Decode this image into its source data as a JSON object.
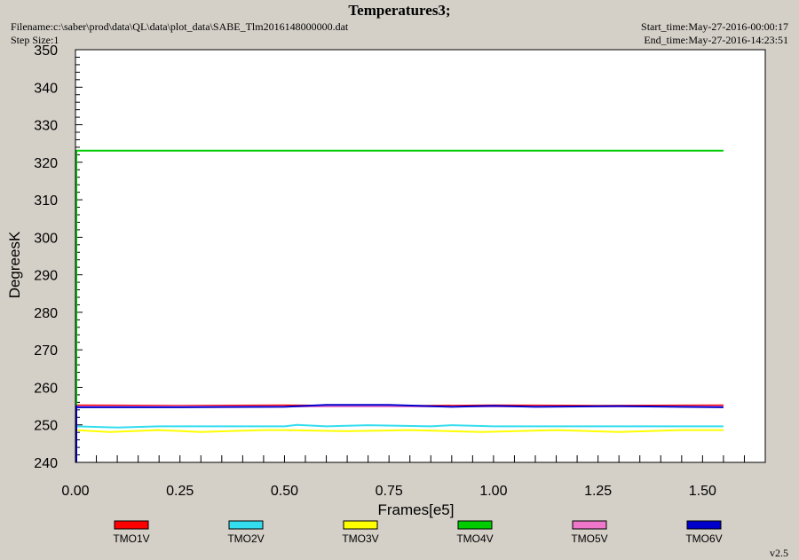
{
  "header": {
    "title": "Temperatures3;",
    "filename": "Filename:c:\\saber\\prod\\data\\QL\\data\\plot_data\\SABE_Tlm2016148000000.dat",
    "step_size": "Step Size:1",
    "start_time": "Start_time:May-27-2016-00:00:17",
    "end_time": "End_time:May-27-2016-14:23:51"
  },
  "version": "v2.5",
  "chart_data": {
    "type": "line",
    "title": "Temperatures3;",
    "xlabel": "Frames[e5]",
    "ylabel": "DegreesK",
    "xlim": [
      0,
      1.65
    ],
    "ylim": [
      240,
      350
    ],
    "xticks": [
      "0.00",
      "0.25",
      "0.50",
      "0.75",
      "1.00",
      "1.25",
      "1.50"
    ],
    "yticks": [
      "240",
      "250",
      "260",
      "270",
      "280",
      "290",
      "300",
      "310",
      "320",
      "330",
      "340",
      "350"
    ],
    "legend_position": "bottom",
    "series": [
      {
        "name": "TMO1V",
        "color": "#ff0000",
        "x": [
          0,
          0.25,
          0.5,
          0.75,
          1.0,
          1.25,
          1.55
        ],
        "y": [
          255.2,
          255.1,
          255.2,
          255.0,
          255.2,
          255.1,
          255.2
        ]
      },
      {
        "name": "TMO2V",
        "color": "#33ddee",
        "x": [
          0,
          0.1,
          0.2,
          0.35,
          0.5,
          0.53,
          0.6,
          0.7,
          0.85,
          0.9,
          1.0,
          1.2,
          1.4,
          1.55
        ],
        "y": [
          249.6,
          249.3,
          249.6,
          249.6,
          249.6,
          250.0,
          249.6,
          249.9,
          249.6,
          249.9,
          249.6,
          249.6,
          249.6,
          249.6
        ]
      },
      {
        "name": "TMO3V",
        "color": "#ffff00",
        "x": [
          0,
          0.08,
          0.2,
          0.3,
          0.45,
          0.5,
          0.65,
          0.8,
          0.97,
          1.15,
          1.3,
          1.45,
          1.55
        ],
        "y": [
          248.6,
          248.1,
          248.6,
          248.1,
          248.6,
          248.6,
          248.3,
          248.6,
          248.1,
          248.6,
          248.1,
          248.6,
          248.6
        ]
      },
      {
        "name": "TMO4V",
        "color": "#00cc00",
        "x": [
          0,
          1.55
        ],
        "y": [
          323.1,
          323.1
        ]
      },
      {
        "name": "TMO5V",
        "color": "#ee77cc",
        "x": [
          0,
          1.55
        ],
        "y": [
          254.9,
          254.9
        ]
      },
      {
        "name": "TMO6V",
        "color": "#0000cc",
        "x": [
          0,
          0.25,
          0.5,
          0.6,
          0.75,
          0.9,
          1.0,
          1.1,
          1.3,
          1.55
        ],
        "y": [
          254.7,
          254.7,
          254.8,
          255.3,
          255.3,
          254.8,
          255.1,
          254.8,
          255.0,
          254.7
        ]
      }
    ]
  }
}
